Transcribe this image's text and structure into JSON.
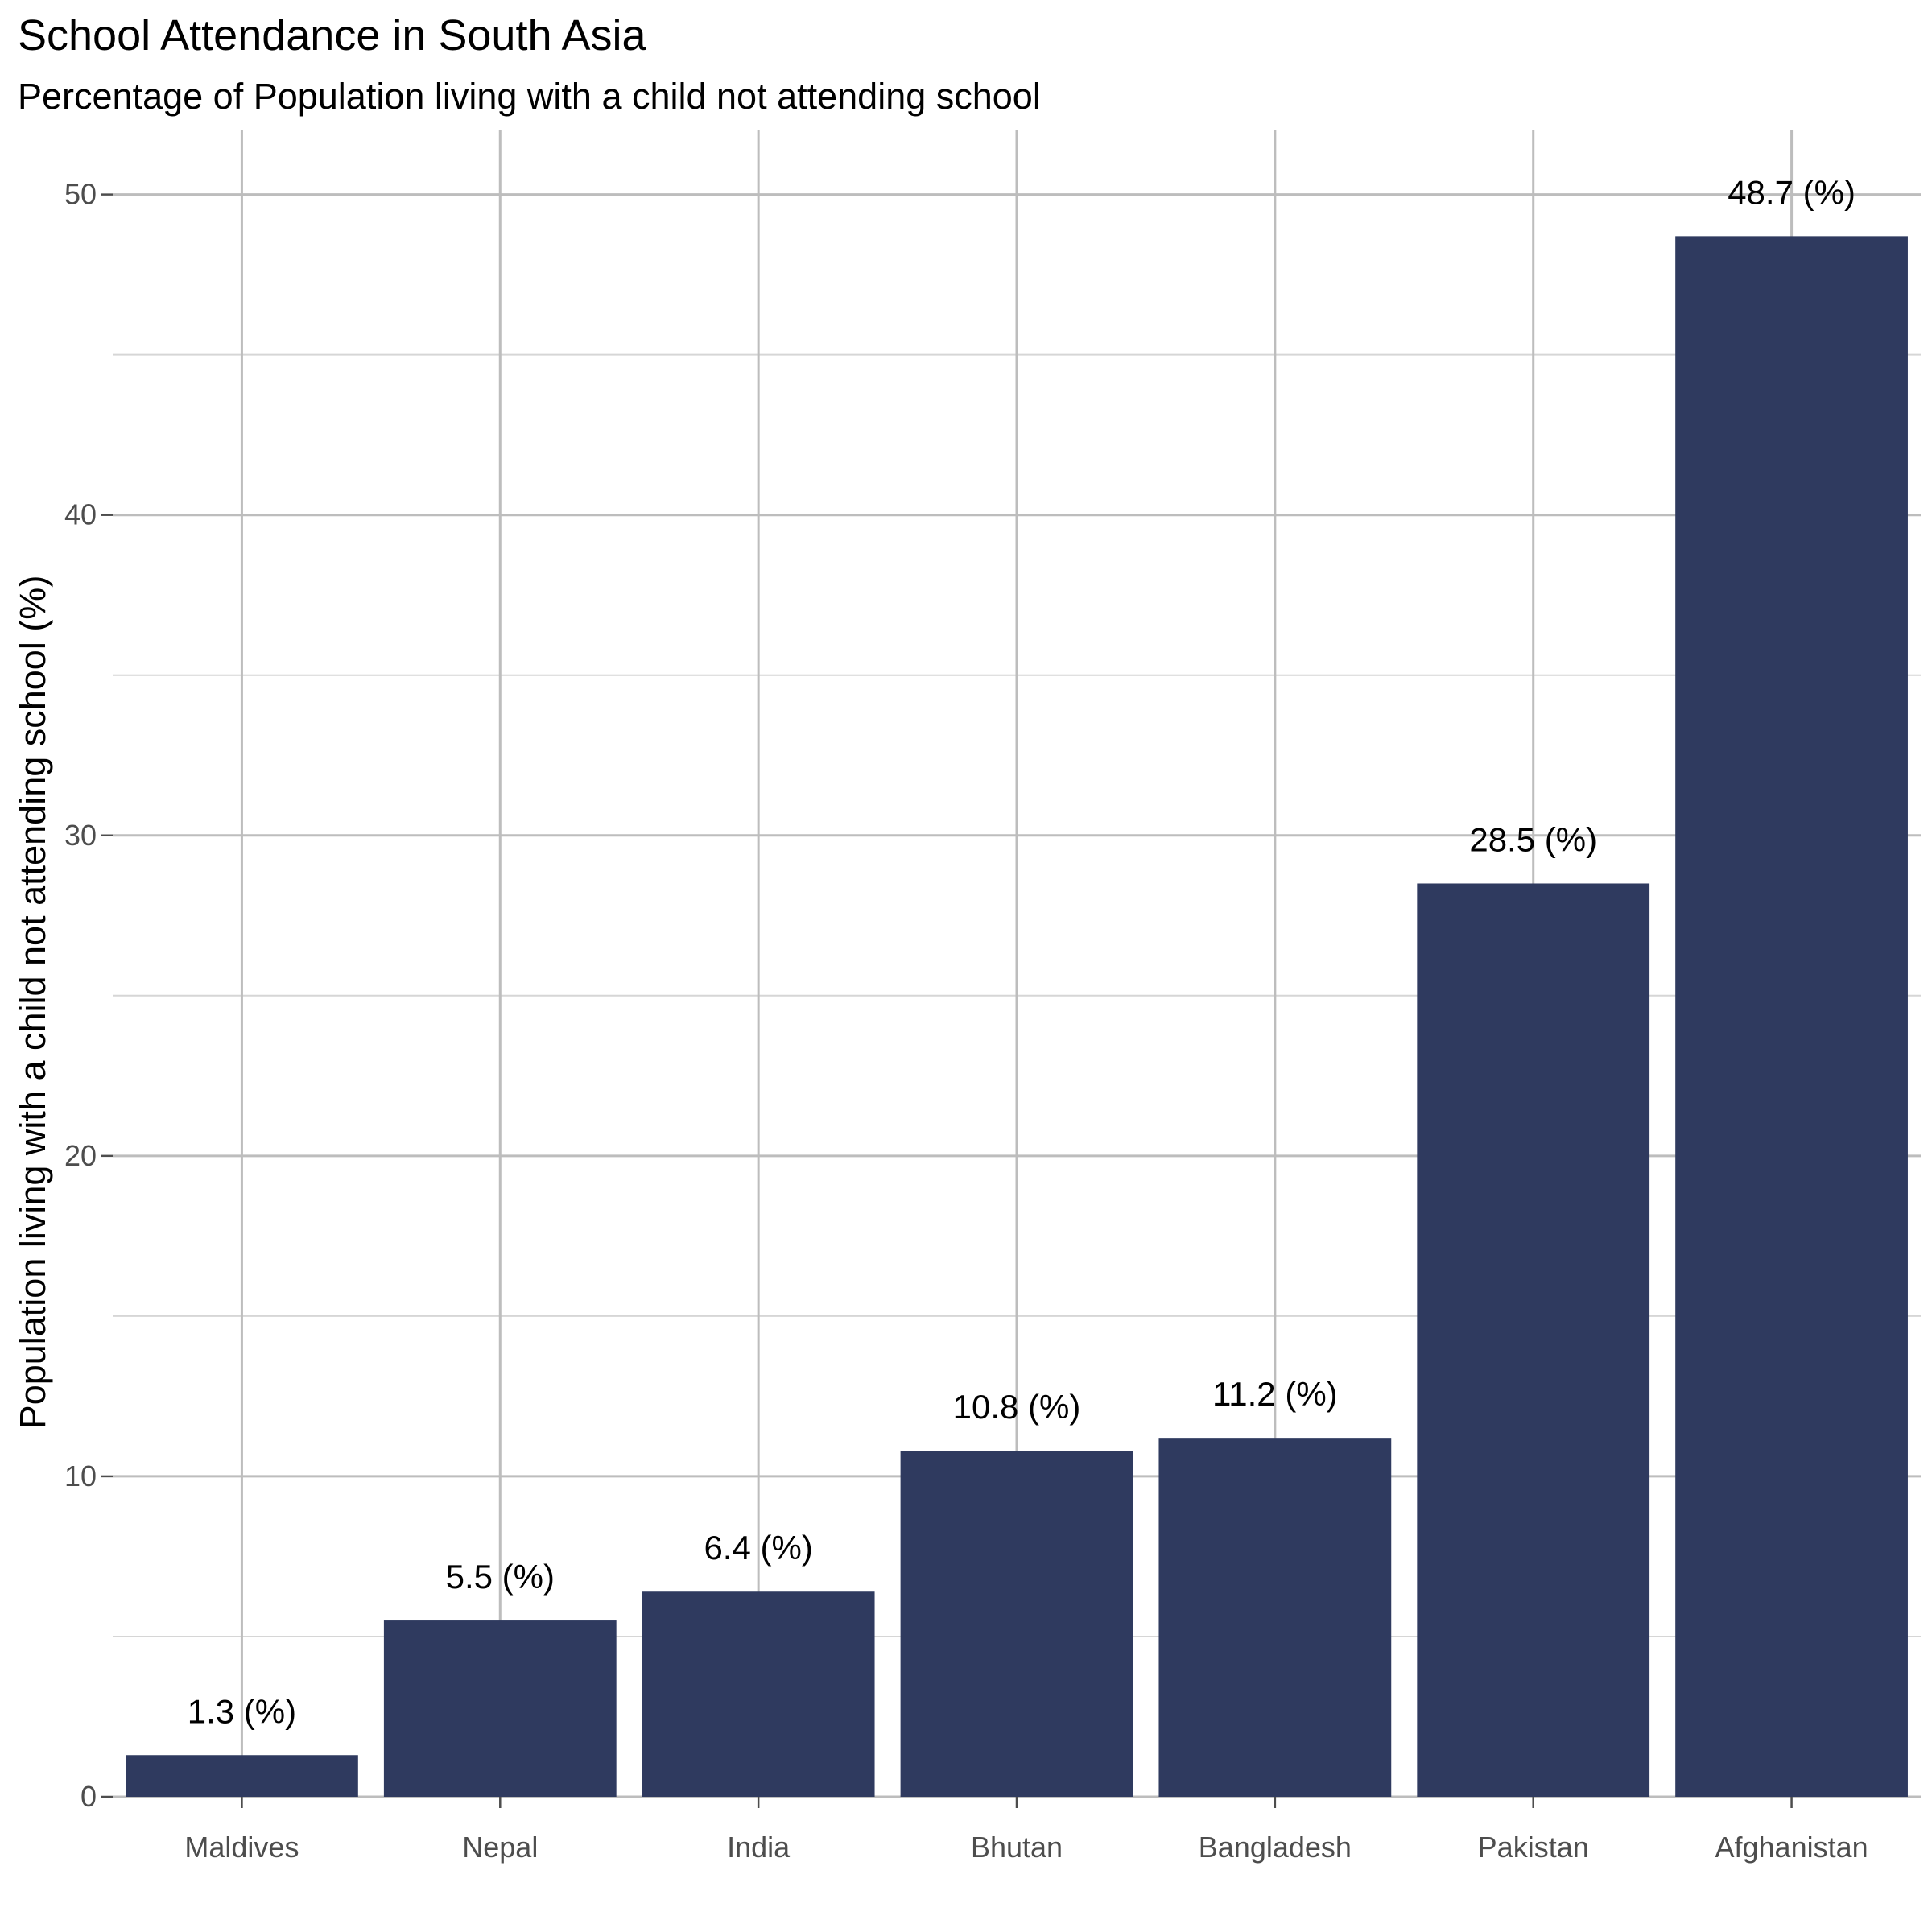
{
  "chart_data": {
    "type": "bar",
    "title": "School Attendance in South Asia",
    "subtitle": "Percentage of Population living with a child not attending school",
    "xlabel": "",
    "ylabel": "Population living with a child not attending school (%)",
    "categories": [
      "Maldives",
      "Nepal",
      "India",
      "Bhutan",
      "Bangladesh",
      "Pakistan",
      "Afghanistan"
    ],
    "values": [
      1.3,
      5.5,
      6.4,
      10.8,
      11.2,
      28.5,
      48.7
    ],
    "data_labels": [
      "1.3 (%)",
      "5.5 (%)",
      "6.4 (%)",
      "10.8 (%)",
      "11.2 (%)",
      "28.5 (%)",
      "48.7 (%)"
    ],
    "ylim": [
      0,
      52
    ],
    "yticks": [
      0,
      10,
      20,
      30,
      40,
      50
    ],
    "grid": true,
    "legend": "none",
    "bar_color": "#2f3a5f"
  }
}
